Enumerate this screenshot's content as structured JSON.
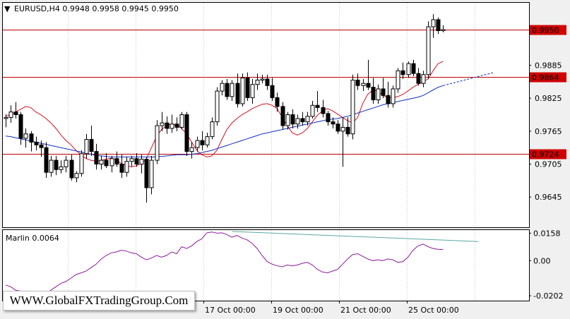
{
  "symbol_header": {
    "marker": "▼",
    "text": "EURUSD,H4  0.9948 0.9958 0.9945 0.9950"
  },
  "indicator_header": {
    "text": "Marlin 0.0064"
  },
  "watermark": "WWW.GlobalFXTradingGroup.Com",
  "colors": {
    "background": "#f0f0f0",
    "plot_bg": "#ffffff",
    "candle": "#000000",
    "level_line": "#c00000",
    "ma_red": "#d01020",
    "ma_blue": "#1030c0",
    "oscillator": "#8a1a9a",
    "trend_line": "#5aa6a6",
    "price_label_bg": "#d00000"
  },
  "chart_data": [
    {
      "type": "candlestick",
      "title": "EURUSD,H4",
      "ohlc_header": {
        "open": 0.9948,
        "high": 0.9958,
        "low": 0.9945,
        "close": 0.995
      },
      "y_ticks": [
        "0.9645",
        "0.9705",
        "0.9765",
        "0.9825",
        "0.9885"
      ],
      "x_ticks": [
        "17 Oct 00:00",
        "19 Oct 00:00",
        "21 Oct 00:00",
        "25 Oct 00:00"
      ],
      "ylim": [
        0.959,
        1.0
      ],
      "horizontal_levels": [
        {
          "value": 0.995,
          "label": "0.9950"
        },
        {
          "value": 0.9864,
          "label": "0.9864"
        },
        {
          "value": 0.9724,
          "label": "0.9724"
        }
      ],
      "candles": [
        [
          0.9788,
          0.9796,
          0.9772,
          0.979
        ],
        [
          0.979,
          0.9812,
          0.978,
          0.98
        ],
        [
          0.98,
          0.9818,
          0.9788,
          0.9795
        ],
        [
          0.9795,
          0.98,
          0.974,
          0.9752
        ],
        [
          0.9752,
          0.977,
          0.9735,
          0.976
        ],
        [
          0.976,
          0.9765,
          0.9728,
          0.9745
        ],
        [
          0.9745,
          0.9755,
          0.973,
          0.974
        ],
        [
          0.974,
          0.9748,
          0.9718,
          0.9735
        ],
        [
          0.9735,
          0.9745,
          0.968,
          0.969
        ],
        [
          0.969,
          0.972,
          0.9682,
          0.9712
        ],
        [
          0.9712,
          0.972,
          0.9685,
          0.9695
        ],
        [
          0.9695,
          0.9712,
          0.9688,
          0.97
        ],
        [
          0.97,
          0.972,
          0.969,
          0.9712
        ],
        [
          0.9712,
          0.9722,
          0.9675,
          0.968
        ],
        [
          0.968,
          0.9692,
          0.9672,
          0.9688
        ],
        [
          0.9688,
          0.973,
          0.9682,
          0.9724
        ],
        [
          0.9724,
          0.976,
          0.9715,
          0.975
        ],
        [
          0.975,
          0.9775,
          0.972,
          0.9728
        ],
        [
          0.9728,
          0.9742,
          0.9695,
          0.9705
        ],
        [
          0.9705,
          0.972,
          0.9695,
          0.9712
        ],
        [
          0.9712,
          0.9725,
          0.9698,
          0.9702
        ],
        [
          0.9702,
          0.972,
          0.969,
          0.9715
        ],
        [
          0.9715,
          0.9728,
          0.97,
          0.9705
        ],
        [
          0.9705,
          0.9722,
          0.968,
          0.969
        ],
        [
          0.969,
          0.9718,
          0.9682,
          0.971
        ],
        [
          0.971,
          0.972,
          0.97,
          0.9715
        ],
        [
          0.9715,
          0.9725,
          0.97,
          0.9705
        ],
        [
          0.9705,
          0.9722,
          0.9688,
          0.9714
        ],
        [
          0.9714,
          0.9718,
          0.9635,
          0.9662
        ],
        [
          0.9662,
          0.972,
          0.965,
          0.9712
        ],
        [
          0.9712,
          0.9785,
          0.9705,
          0.9775
        ],
        [
          0.9775,
          0.98,
          0.9765,
          0.978
        ],
        [
          0.978,
          0.9792,
          0.976,
          0.977
        ],
        [
          0.977,
          0.9795,
          0.9762,
          0.9778
        ],
        [
          0.9778,
          0.979,
          0.9765,
          0.9772
        ],
        [
          0.9772,
          0.98,
          0.9768,
          0.9795
        ],
        [
          0.9795,
          0.98,
          0.972,
          0.9728
        ],
        [
          0.9728,
          0.9745,
          0.9715,
          0.9735
        ],
        [
          0.9735,
          0.9755,
          0.9728,
          0.9748
        ],
        [
          0.9748,
          0.9765,
          0.973,
          0.974
        ],
        [
          0.974,
          0.9762,
          0.9735,
          0.9755
        ],
        [
          0.9755,
          0.979,
          0.975,
          0.9782
        ],
        [
          0.9782,
          0.9845,
          0.9775,
          0.9838
        ],
        [
          0.9838,
          0.9858,
          0.983,
          0.9852
        ],
        [
          0.9852,
          0.986,
          0.9822,
          0.9828
        ],
        [
          0.9828,
          0.9858,
          0.982,
          0.9852
        ],
        [
          0.9852,
          0.987,
          0.9808,
          0.9815
        ],
        [
          0.9815,
          0.987,
          0.981,
          0.9862
        ],
        [
          0.9862,
          0.9872,
          0.982,
          0.9826
        ],
        [
          0.9826,
          0.986,
          0.9815,
          0.985
        ],
        [
          0.985,
          0.987,
          0.984,
          0.9858
        ],
        [
          0.9858,
          0.9868,
          0.9852,
          0.986
        ],
        [
          0.986,
          0.9868,
          0.984,
          0.9848
        ],
        [
          0.9848,
          0.9862,
          0.982,
          0.9826
        ],
        [
          0.9826,
          0.9835,
          0.98,
          0.981
        ],
        [
          0.981,
          0.9818,
          0.9768,
          0.9775
        ],
        [
          0.9775,
          0.98,
          0.9768,
          0.9795
        ],
        [
          0.9795,
          0.9805,
          0.977,
          0.9778
        ],
        [
          0.9778,
          0.9795,
          0.977,
          0.9788
        ],
        [
          0.9788,
          0.98,
          0.9775,
          0.9782
        ],
        [
          0.9782,
          0.98,
          0.9775,
          0.9792
        ],
        [
          0.9792,
          0.982,
          0.9788,
          0.9812
        ],
        [
          0.9812,
          0.9838,
          0.98,
          0.9808
        ],
        [
          0.9808,
          0.9822,
          0.979,
          0.9797
        ],
        [
          0.9797,
          0.9802,
          0.9775,
          0.9782
        ],
        [
          0.9782,
          0.979,
          0.977,
          0.9778
        ],
        [
          0.9778,
          0.9785,
          0.976,
          0.9765
        ],
        [
          0.9765,
          0.979,
          0.97,
          0.9772
        ],
        [
          0.9772,
          0.979,
          0.9755,
          0.976
        ],
        [
          0.976,
          0.9868,
          0.975,
          0.9858
        ],
        [
          0.9858,
          0.987,
          0.984,
          0.9848
        ],
        [
          0.9848,
          0.986,
          0.9838,
          0.9852
        ],
        [
          0.9852,
          0.9895,
          0.984,
          0.9845
        ],
        [
          0.9845,
          0.9862,
          0.9815,
          0.9822
        ],
        [
          0.9822,
          0.985,
          0.9815,
          0.9842
        ],
        [
          0.9842,
          0.9862,
          0.9825,
          0.983
        ],
        [
          0.983,
          0.9855,
          0.9808,
          0.9815
        ],
        [
          0.9815,
          0.9848,
          0.9808,
          0.9842
        ],
        [
          0.9842,
          0.988,
          0.9835,
          0.9875
        ],
        [
          0.9875,
          0.989,
          0.986,
          0.9868
        ],
        [
          0.9868,
          0.9892,
          0.9862,
          0.9888
        ],
        [
          0.9888,
          0.9895,
          0.9865,
          0.987
        ],
        [
          0.987,
          0.988,
          0.9848,
          0.9852
        ],
        [
          0.9852,
          0.9875,
          0.9845,
          0.9868
        ],
        [
          0.9868,
          0.9965,
          0.986,
          0.9955
        ],
        [
          0.9955,
          0.9978,
          0.9935,
          0.9968
        ],
        [
          0.9968,
          0.9972,
          0.9942,
          0.9948
        ],
        [
          0.9948,
          0.9958,
          0.9945,
          0.995
        ]
      ],
      "ma_red": [
        0.9792,
        0.9795,
        0.98,
        0.9805,
        0.981,
        0.9808,
        0.98,
        0.9795,
        0.9788,
        0.978,
        0.977,
        0.9758,
        0.9748,
        0.974,
        0.973,
        0.9722,
        0.9715,
        0.9712,
        0.971,
        0.9712,
        0.9714,
        0.9716,
        0.9712,
        0.9706,
        0.9702,
        0.97,
        0.9702,
        0.9706,
        0.9715,
        0.9735,
        0.9755,
        0.9768,
        0.9775,
        0.9778,
        0.9776,
        0.977,
        0.976,
        0.9745,
        0.973,
        0.9722,
        0.9718,
        0.972,
        0.973,
        0.975,
        0.9768,
        0.978,
        0.9788,
        0.9795,
        0.98,
        0.9806,
        0.981,
        0.9814,
        0.9815,
        0.9812,
        0.9806,
        0.979,
        0.9775,
        0.9762,
        0.9758,
        0.9762,
        0.977,
        0.9782,
        0.9794,
        0.9802,
        0.9806,
        0.9802,
        0.9796,
        0.979,
        0.9784,
        0.978,
        0.979,
        0.9815,
        0.9832,
        0.984,
        0.9838,
        0.983,
        0.9826,
        0.9826,
        0.9828,
        0.9832,
        0.9838,
        0.9845,
        0.985,
        0.9855,
        0.986,
        0.9875,
        0.9888,
        0.9892
      ],
      "ma_blue": [
        0.9756,
        0.9755,
        0.9753,
        0.9751,
        0.9749,
        0.9747,
        0.9745,
        0.9743,
        0.9741,
        0.9739,
        0.9737,
        0.9735,
        0.9733,
        0.9731,
        0.9729,
        0.9727,
        0.9725,
        0.9723,
        0.9721,
        0.972,
        0.9719,
        0.9718,
        0.9718,
        0.9718,
        0.9718,
        0.9718,
        0.9718,
        0.9718,
        0.9718,
        0.9718,
        0.9718,
        0.9719,
        0.972,
        0.9721,
        0.9722,
        0.9722,
        0.9722,
        0.9723,
        0.9724,
        0.9726,
        0.9728,
        0.973,
        0.9733,
        0.9736,
        0.9739,
        0.9742,
        0.9745,
        0.9748,
        0.9751,
        0.9754,
        0.9757,
        0.976,
        0.9762,
        0.9764,
        0.9766,
        0.9768,
        0.977,
        0.9772,
        0.9774,
        0.9776,
        0.9778,
        0.978,
        0.9782,
        0.9784,
        0.9786,
        0.9787,
        0.9788,
        0.979,
        0.9792,
        0.9795,
        0.9798,
        0.9801,
        0.9804,
        0.9807,
        0.981,
        0.9813,
        0.9815,
        0.9817,
        0.9819,
        0.9821,
        0.9823,
        0.9825,
        0.9827,
        0.983,
        0.9835,
        0.984,
        0.9845,
        0.9848
      ],
      "ma_blue_projection": [
        0.9848,
        0.9854,
        0.986,
        0.9866,
        0.9872
      ]
    },
    {
      "type": "line",
      "title": "Marlin 0.0064",
      "name": "Marlin",
      "value": 0.0064,
      "y_ticks": [
        "0.0158",
        "0.00",
        "-0.0202"
      ],
      "ylim": [
        -0.023,
        0.018
      ],
      "values": [
        -0.014,
        -0.015,
        -0.017,
        -0.0175,
        -0.0185,
        -0.019,
        -0.02,
        -0.0195,
        -0.019,
        -0.017,
        -0.015,
        -0.013,
        -0.012,
        -0.01,
        -0.008,
        -0.007,
        -0.006,
        -0.004,
        -0.002,
        0.001,
        0.003,
        0.0045,
        0.005,
        0.006,
        0.0055,
        0.0045,
        0.004,
        0.002,
        0.0005,
        0.0015,
        0.003,
        0.002,
        0.003,
        0.005,
        0.004,
        0.008,
        0.007,
        0.0085,
        0.011,
        0.0125,
        0.016,
        0.0165,
        0.0158,
        0.016,
        0.015,
        0.0135,
        0.0145,
        0.013,
        0.012,
        0.01,
        0.007,
        0.003,
        -0.0005,
        -0.002,
        -0.003,
        -0.0035,
        -0.0025,
        -0.003,
        -0.0025,
        -0.0015,
        -0.001,
        -0.0025,
        -0.005,
        -0.0065,
        -0.007,
        -0.006,
        -0.005,
        -0.002,
        0.001,
        0.0035,
        0.004,
        0.0025,
        0.001,
        0.0,
        0.0005,
        0.0,
        0.001,
        0.0005,
        -0.001,
        -0.0005,
        0.002,
        0.006,
        0.0085,
        0.0095,
        0.008,
        0.007,
        0.0065,
        0.0064
      ],
      "trend_line": [
        0.0168,
        0.011
      ]
    }
  ]
}
